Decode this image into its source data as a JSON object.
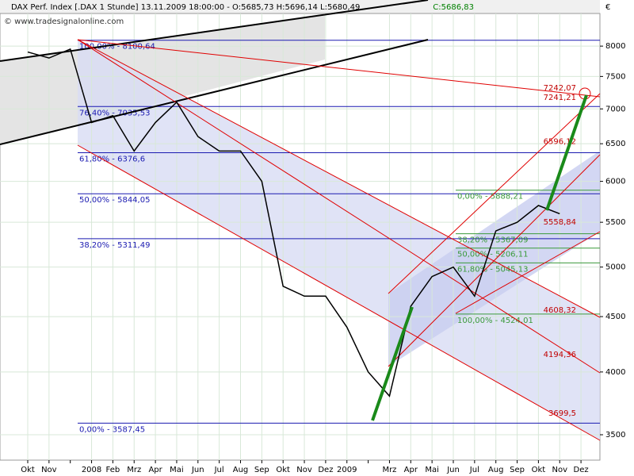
{
  "chart_data": {
    "type": "line",
    "title": "DAX Perf. Index [.DAX  1 Stunde] 13.11.2009 18:00:00 - O:5685,73 H:5696,14 L:5680,49",
    "last_close": "C:5686,83",
    "watermark": "© www.tradesignalonline.com",
    "currency": "€",
    "categories": [
      "Okt",
      "Nov",
      null,
      "2008",
      "Feb",
      "Mrz",
      "Apr",
      "Mai",
      "Jun",
      "Jul",
      "Aug",
      "Sep",
      "Okt",
      "Nov",
      "Dez",
      "2009",
      null,
      "Mrz",
      "Apr",
      "Mai",
      "Jun",
      "Jul",
      "Aug",
      "Sep",
      "Okt",
      "Nov",
      "Dez"
    ],
    "series": [
      {
        "name": "DAX",
        "color": "#000000",
        "values": [
          7900,
          7800,
          7950,
          6800,
          6900,
          6400,
          6800,
          7100,
          6600,
          6400,
          6400,
          6000,
          4800,
          4700,
          4700,
          4400,
          4000,
          3800,
          4600,
          4900,
          5000,
          4700,
          5400,
          5500,
          5700,
          5600,
          null
        ]
      }
    ],
    "log_scale": true,
    "ylim": [
      3316,
      8575
    ],
    "yticks": [
      3500,
      4000,
      4500,
      5000,
      5500,
      6000,
      6500,
      7000,
      7500,
      8000
    ],
    "fib_levels": [
      {
        "value": 8100.64,
        "label": "100,00% - 8100,64"
      },
      {
        "value": 7035.53,
        "label": "76,40% - 7035,53"
      },
      {
        "value": 6376.6,
        "label": "61,80% - 6376,6"
      },
      {
        "value": 5844.05,
        "label": "50,00% - 5844,05"
      },
      {
        "value": 5311.49,
        "label": "38,20% - 5311,49"
      },
      {
        "value": 3587.45,
        "label": "0,00% - 3587,45"
      }
    ],
    "fib_levels_2": [
      {
        "value": 5888.21,
        "label": "0,00% - 5888,21"
      },
      {
        "value": 5367.09,
        "label": "38,20% - 5367,09"
      },
      {
        "value": 5206.11,
        "label": "50,00% - 5206,11"
      },
      {
        "value": 5045.13,
        "label": "61,80% - 5045,13"
      },
      {
        "value": 4524.01,
        "label": "100,00% - 4524,01"
      }
    ],
    "red_levels": [
      {
        "value": 7242.07,
        "label": "7242,07"
      },
      {
        "value": 7241.21,
        "label": "7241,21"
      },
      {
        "value": 6596.12,
        "label": "6596,12"
      },
      {
        "value": 5558.84,
        "label": "5558,84"
      },
      {
        "value": 4608.32,
        "label": "4608,32"
      },
      {
        "value": 4194.36,
        "label": "4194,36"
      },
      {
        "value": 3699.5,
        "label": "3699,5"
      }
    ]
  }
}
